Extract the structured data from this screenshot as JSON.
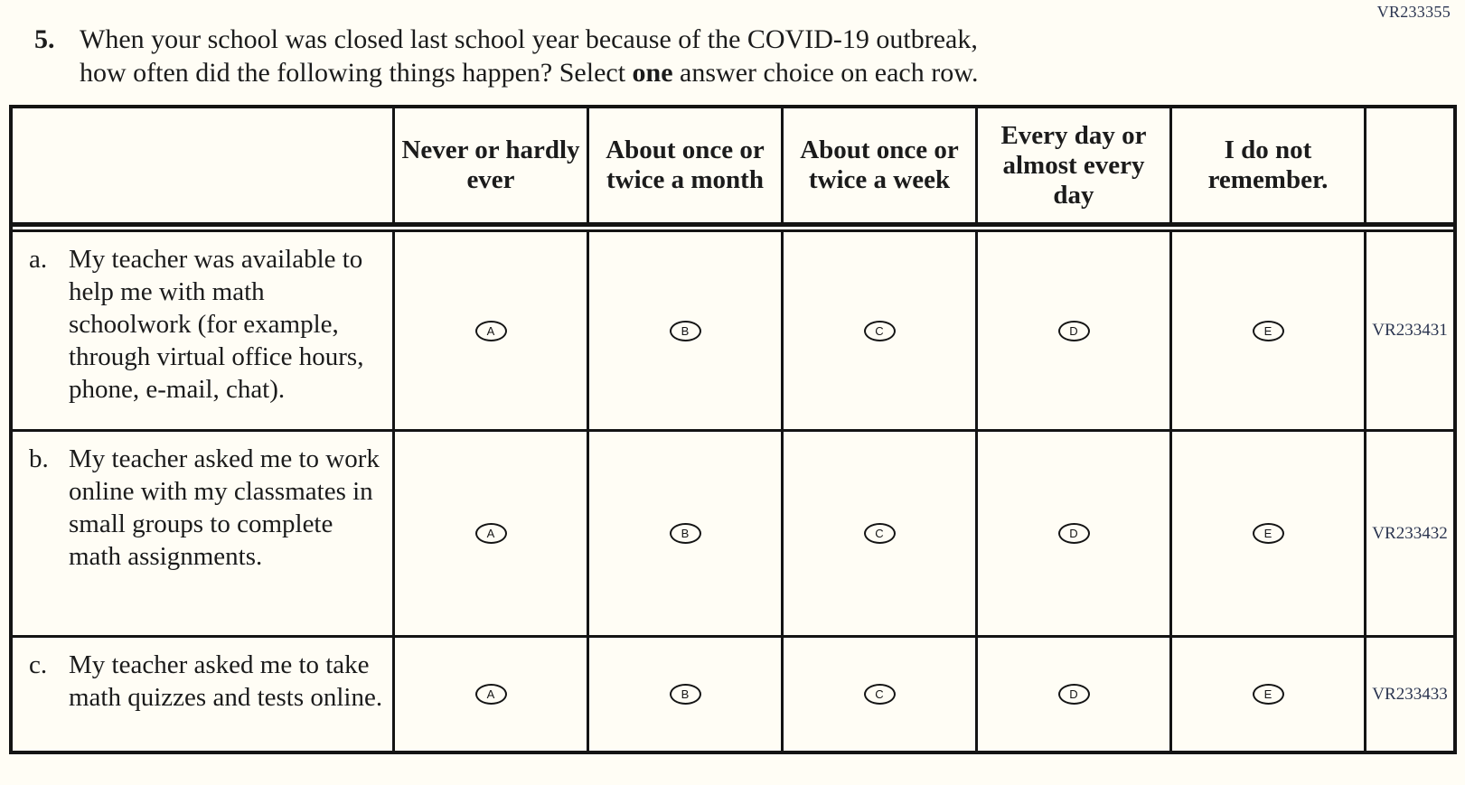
{
  "page": {
    "form_code": "VR233355",
    "background_color": "#fffdf5",
    "text_color": "#1b1b1b",
    "border_color": "#141414",
    "code_color": "#2b3550"
  },
  "question": {
    "number": "5.",
    "line1": "When your school was closed last school year because of the COVID-19 outbreak,",
    "line2_before": "how often did the following things happen? Select",
    "line2_bold": "one",
    "line2_after": "answer choice on each row."
  },
  "table": {
    "columns": [
      "Never or hardly ever",
      "About once or twice a month",
      "About once or twice a week",
      "Every day or almost every day",
      "I do not remember."
    ],
    "options": [
      "A",
      "B",
      "C",
      "D",
      "E"
    ],
    "rows": [
      {
        "letter": "a.",
        "statement": "My teacher was available to help me with math schoolwork (for example, through virtual office hours, phone, e-mail, chat).",
        "code": "VR233431"
      },
      {
        "letter": "b.",
        "statement": "My teacher asked me to work online with my classmates in small groups to complete math assignments.",
        "code": "VR233432"
      },
      {
        "letter": "c.",
        "statement": "My teacher asked me to take math quizzes and tests online.",
        "code": "VR233433"
      }
    ]
  }
}
